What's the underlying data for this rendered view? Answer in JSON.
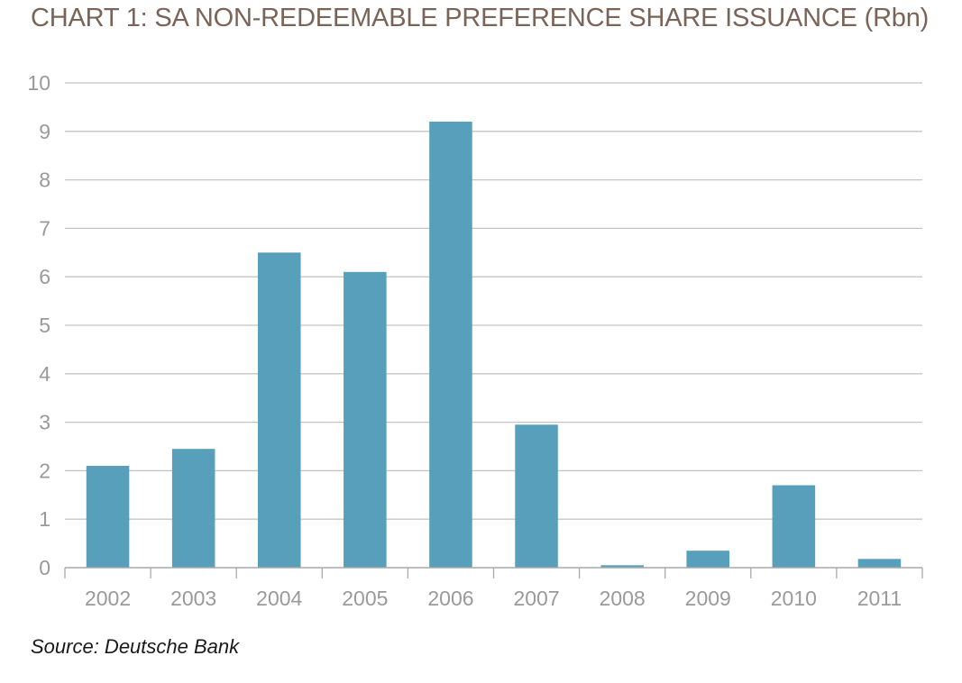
{
  "title": "CHART 1: SA NON-REDEEMABLE PREFERENCE SHARE ISSUANCE (Rbn)",
  "source": "Source: Deutsche Bank",
  "colors": {
    "bar": "#579fbb",
    "grid": "#c4c4c4",
    "axis": "#a9a9a9",
    "title": "#7a6457",
    "tick_text": "#9a9a9a"
  },
  "chart_data": {
    "type": "bar",
    "title": "CHART 1: SA NON-REDEEMABLE PREFERENCE SHARE ISSUANCE (Rbn)",
    "xlabel": "",
    "ylabel": "",
    "categories": [
      "2002",
      "2003",
      "2004",
      "2005",
      "2006",
      "2007",
      "2008",
      "2009",
      "2010",
      "2011"
    ],
    "values": [
      2.1,
      2.45,
      6.5,
      6.1,
      9.2,
      2.95,
      0.05,
      0.35,
      1.7,
      0.18
    ],
    "ylim": [
      0,
      10
    ],
    "yticks": [
      "0",
      "1",
      "2",
      "3",
      "4",
      "5",
      "6",
      "7",
      "8",
      "9",
      "10"
    ],
    "grid": true,
    "legend": "none"
  }
}
